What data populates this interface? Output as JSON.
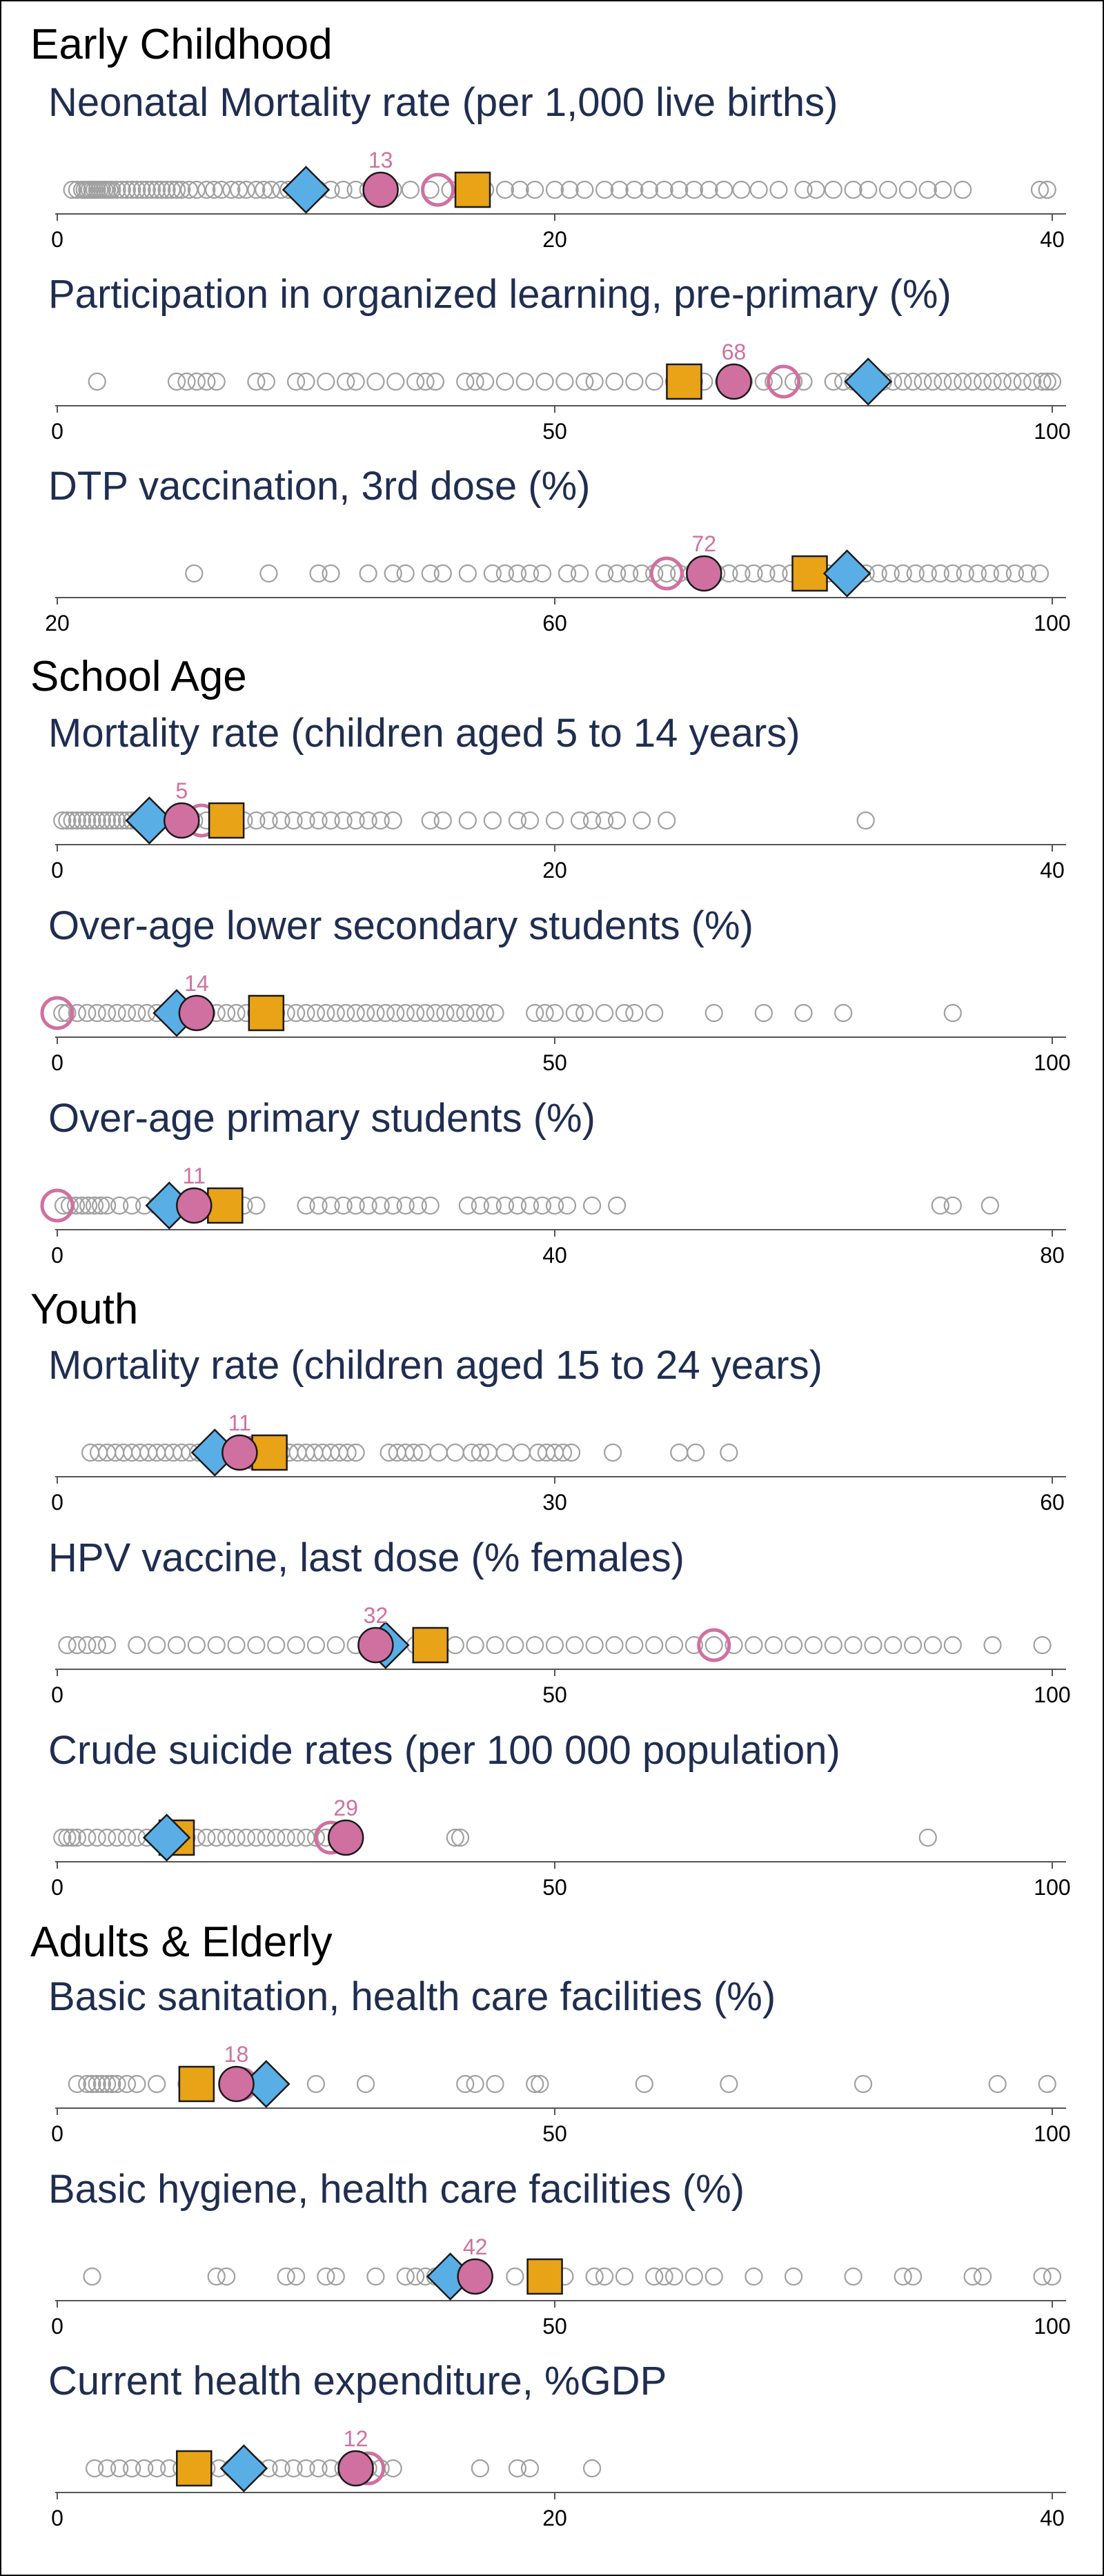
{
  "sections": [
    {
      "title": "Early Childhood"
    },
    {
      "title": "School Age"
    },
    {
      "title": "Youth"
    },
    {
      "title": "Adults & Elderly"
    }
  ],
  "colors": {
    "title": "#1f2d50",
    "other": "#a0a0a0",
    "highlight": "#d070a0",
    "square": "#e8a317",
    "diamond": "#5aaee6",
    "axis": "#555555"
  },
  "chart_data": [
    {
      "type": "scatter",
      "title": "Neonatal Mortality rate (per 1,000 live births)",
      "section": "Early Childhood",
      "xlim": [
        0,
        40
      ],
      "xticks": [
        0,
        20,
        40
      ],
      "others": [
        0.6,
        0.8,
        1,
        1.1,
        1.2,
        1.3,
        1.4,
        1.5,
        1.6,
        1.7,
        1.8,
        1.9,
        2,
        2.1,
        2.2,
        2.4,
        2.6,
        2.8,
        3,
        3.2,
        3.4,
        3.6,
        3.8,
        4,
        4.2,
        4.4,
        4.6,
        4.8,
        5,
        5.3,
        5.6,
        6,
        6.3,
        6.6,
        7,
        7.3,
        7.6,
        8,
        8.3,
        8.6,
        9,
        9.3,
        9.6,
        10,
        10.5,
        11,
        11.5,
        12,
        12.5,
        13.5,
        14.2,
        15,
        15.8,
        16.6,
        17.2,
        18,
        18.6,
        19.2,
        20,
        20.6,
        21.2,
        22,
        22.6,
        23.2,
        23.8,
        24.4,
        25,
        25.6,
        26.2,
        26.8,
        27.5,
        28.2,
        29,
        30,
        30.5,
        31.2,
        32,
        32.6,
        33.4,
        34.2,
        35,
        35.6,
        36.4,
        39.5,
        39.8
      ],
      "highlight_value": 13,
      "value_label": "13",
      "ring_value": 15.3,
      "square_value": 16.7,
      "diamond_value": 10
    },
    {
      "type": "scatter",
      "title": "Participation in organized learning,  pre-primary (%)",
      "section": "Early Childhood",
      "xlim": [
        0,
        100
      ],
      "xticks": [
        0,
        50,
        100
      ],
      "others": [
        4,
        12,
        13,
        14,
        15,
        16,
        20,
        21,
        24,
        25,
        27,
        29,
        30,
        32,
        34,
        36,
        37,
        38,
        41,
        42,
        43,
        45,
        47,
        49,
        51,
        53,
        54,
        56,
        58,
        60,
        62,
        64,
        65,
        67,
        69,
        71,
        72,
        74,
        75,
        78,
        79,
        80,
        82,
        83,
        84,
        85,
        86,
        87,
        88,
        89,
        90,
        91,
        92,
        93,
        94,
        95,
        96,
        97,
        98,
        99,
        99.5,
        100
      ],
      "highlight_value": 68,
      "value_label": "68",
      "ring_value": 73,
      "square_value": 63,
      "diamond_value": 81.5
    },
    {
      "type": "scatter",
      "title": "DTP vaccination, 3rd dose (%)",
      "section": "Early Childhood",
      "xlim": [
        20,
        100
      ],
      "xticks": [
        20,
        60,
        100
      ],
      "others": [
        31,
        37,
        41,
        42,
        45,
        47,
        48,
        50,
        51,
        53,
        55,
        56,
        57,
        58,
        59,
        61,
        62,
        64,
        65,
        66,
        67,
        68,
        69,
        70,
        71,
        73,
        74,
        75,
        76,
        77,
        78,
        79,
        80,
        81,
        82,
        83,
        84,
        85,
        86,
        87,
        88,
        89,
        90,
        91,
        92,
        93,
        94,
        95,
        96,
        97,
        98,
        99
      ],
      "highlight_value": 72,
      "value_label": "72",
      "ring_value": 69,
      "square_value": 80.5,
      "diamond_value": 83.5
    },
    {
      "type": "scatter",
      "title": "Mortality rate (children aged 5 to 14 years)",
      "section": "School Age",
      "xlim": [
        0,
        40
      ],
      "xticks": [
        0,
        20,
        40
      ],
      "others": [
        0.2,
        0.4,
        0.6,
        0.8,
        1,
        1.2,
        1.4,
        1.6,
        1.8,
        2,
        2.2,
        2.4,
        2.6,
        2.8,
        3,
        3.2,
        3.4,
        3.6,
        3.8,
        4,
        4.5,
        5,
        5.5,
        6,
        6.5,
        7,
        7.5,
        8,
        8.5,
        9,
        9.5,
        10,
        10.5,
        11,
        11.5,
        12,
        12.5,
        13,
        13.5,
        15,
        15.5,
        16.5,
        17.5,
        18.5,
        19,
        20,
        21,
        21.5,
        22,
        22.5,
        23.5,
        24.5,
        32.5
      ],
      "highlight_value": 5,
      "value_label": "5",
      "ring_value": 5.8,
      "square_value": 6.8,
      "diamond_value": 3.7
    },
    {
      "type": "scatter",
      "title": "Over-age lower secondary students (%)",
      "section": "School Age",
      "xlim": [
        0,
        100
      ],
      "xticks": [
        0,
        50,
        100
      ],
      "others": [
        0.5,
        1,
        2,
        3,
        4,
        5,
        6,
        7,
        8,
        9,
        10,
        11,
        12,
        13,
        15,
        16,
        17,
        18,
        19,
        20,
        21,
        22,
        23,
        24,
        25,
        26,
        27,
        28,
        29,
        30,
        31,
        32,
        33,
        34,
        35,
        36,
        37,
        38,
        39,
        40,
        41,
        42,
        43,
        44,
        48,
        49,
        50,
        52,
        53,
        55,
        57,
        58,
        60,
        66,
        71,
        75,
        79,
        90
      ],
      "highlight_value": 14,
      "value_label": "14",
      "ring_value": 0,
      "square_value": 21,
      "diamond_value": 12
    },
    {
      "type": "scatter",
      "title": "Over-age primary students (%)",
      "section": "School Age",
      "xlim": [
        0,
        80
      ],
      "xticks": [
        0,
        40,
        80
      ],
      "others": [
        0.5,
        1,
        1.5,
        2,
        2.5,
        3,
        3.5,
        4,
        5,
        6,
        7,
        8,
        9,
        10,
        11,
        12,
        13,
        14,
        15,
        16,
        20,
        21,
        22,
        23,
        24,
        25,
        26,
        27,
        28,
        29,
        30,
        33,
        34,
        35,
        36,
        37,
        38,
        39,
        40,
        41,
        43,
        45,
        71,
        72,
        75
      ],
      "highlight_value": 11,
      "value_label": "11",
      "ring_value": 0,
      "square_value": 13.5,
      "diamond_value": 9
    },
    {
      "type": "scatter",
      "title": "Mortality rate (children aged 15 to 24 years)",
      "section": "Youth",
      "xlim": [
        0,
        60
      ],
      "xticks": [
        0,
        30,
        60
      ],
      "others": [
        2,
        2.5,
        3,
        3.5,
        4,
        4.5,
        5,
        5.5,
        6,
        6.5,
        7,
        7.5,
        8,
        8.5,
        9,
        9.5,
        10,
        10.5,
        11,
        11.5,
        12,
        12.5,
        13,
        13.5,
        14,
        14.5,
        15,
        15.5,
        16,
        16.5,
        17,
        17.5,
        18,
        20,
        20.5,
        21,
        21.5,
        22,
        23,
        24,
        25,
        25.5,
        26,
        27,
        28,
        29,
        29.5,
        30,
        30.5,
        31,
        33.5,
        37.5,
        38.5,
        40.5
      ],
      "highlight_value": 11,
      "value_label": "11",
      "ring_value": 11.8,
      "square_value": 12.8,
      "diamond_value": 9.5
    },
    {
      "type": "scatter",
      "title": "HPV vaccine, last dose (% females)",
      "section": "Youth",
      "xlim": [
        0,
        100
      ],
      "xticks": [
        0,
        50,
        100
      ],
      "others": [
        1,
        2,
        3,
        4,
        5,
        8,
        10,
        12,
        14,
        16,
        18,
        20,
        22,
        24,
        26,
        28,
        30,
        34,
        36,
        40,
        42,
        44,
        46,
        48,
        50,
        52,
        54,
        56,
        58,
        60,
        62,
        64,
        66,
        68,
        70,
        72,
        74,
        76,
        78,
        80,
        82,
        84,
        86,
        88,
        90,
        94,
        99
      ],
      "highlight_value": 32,
      "value_label": "32",
      "ring_value": 66,
      "square_value": 37.5,
      "diamond_value": 33
    },
    {
      "type": "scatter",
      "title": "Crude suicide rates (per 100 000 population)",
      "section": "Youth",
      "xlim": [
        0,
        100
      ],
      "xticks": [
        0,
        50,
        100
      ],
      "others": [
        0.5,
        1,
        1.5,
        2,
        3,
        4,
        5,
        6,
        7,
        8,
        9,
        10,
        11,
        12,
        13,
        14,
        15,
        16,
        17,
        18,
        19,
        20,
        21,
        22,
        23,
        24,
        25,
        26,
        27,
        40,
        40.5,
        87.5
      ],
      "highlight_value": 29,
      "value_label": "29",
      "ring_value": 27.5,
      "square_value": 12,
      "diamond_value": 11
    },
    {
      "type": "scatter",
      "title": "Basic sanitation, health care facilities (%)",
      "section": "Adults & Elderly",
      "xlim": [
        0,
        50
      ],
      "xticks": [
        0,
        50,
        100
      ],
      "others": [
        2,
        3,
        3.5,
        4,
        4.5,
        5,
        5.5,
        6,
        7,
        8,
        10,
        13,
        14,
        18,
        26,
        31,
        41,
        42,
        44,
        48,
        48.5,
        59,
        67.5,
        81,
        94.5,
        99.5
      ],
      "highlight_value": 18,
      "value_label": "18",
      "ring_value": 18.5,
      "square_value": 14,
      "diamond_value": 21
    },
    {
      "type": "scatter",
      "title": "Basic hygiene, health care facilities (%)",
      "section": "Adults & Elderly",
      "xlim": [
        0,
        100
      ],
      "xticks": [
        0,
        50,
        100
      ],
      "others": [
        3.5,
        16,
        17,
        23,
        24,
        27,
        28,
        32,
        35,
        36,
        37,
        38,
        40,
        41,
        46,
        51,
        54,
        55,
        57,
        60,
        61,
        62,
        64,
        66,
        70,
        74,
        80,
        85,
        86,
        92,
        93,
        99,
        100
      ],
      "highlight_value": 42,
      "value_label": "42",
      "ring_value": 42,
      "square_value": 49,
      "diamond_value": 39.5
    },
    {
      "type": "scatter",
      "title": "Current health expenditure, %GDP",
      "section": "Adults & Elderly",
      "xlim": [
        0,
        40
      ],
      "xticks": [
        0,
        20,
        40
      ],
      "others": [
        1.5,
        2,
        2.5,
        3,
        3.5,
        4,
        4.5,
        5,
        5.5,
        6,
        6.5,
        7,
        7.5,
        8,
        8.5,
        9,
        9.5,
        10,
        10.5,
        11,
        11.5,
        12,
        12.5,
        13,
        13.5,
        17,
        18.5,
        19,
        21.5
      ],
      "highlight_value": 12,
      "value_label": "12",
      "ring_value": 12.5,
      "square_value": 5.5,
      "diamond_value": 7.5
    }
  ]
}
